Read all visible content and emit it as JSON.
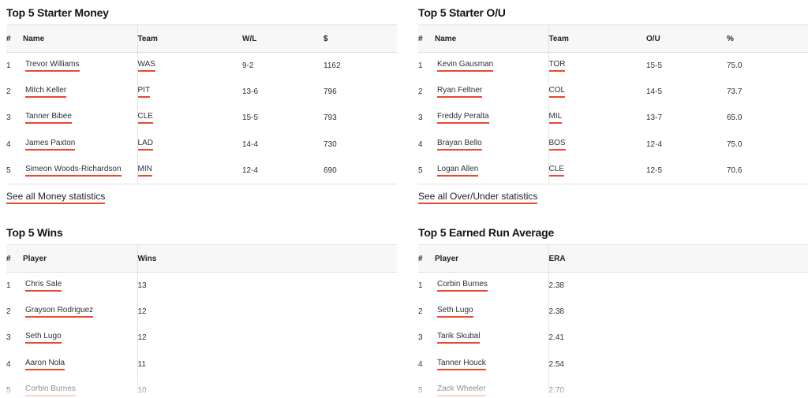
{
  "money": {
    "title": "Top 5 Starter Money",
    "headers": [
      "#",
      "Name",
      "Team",
      "W/L",
      "$"
    ],
    "rows": [
      {
        "rank": "1",
        "name": "Trevor Williams",
        "team": "WAS",
        "wl": "9-2",
        "amount": "1162"
      },
      {
        "rank": "2",
        "name": "Mitch Keller",
        "team": "PIT",
        "wl": "13-6",
        "amount": "796"
      },
      {
        "rank": "3",
        "name": "Tanner Bibee",
        "team": "CLE",
        "wl": "15-5",
        "amount": "793"
      },
      {
        "rank": "4",
        "name": "James Paxton",
        "team": "LAD",
        "wl": "14-4",
        "amount": "730"
      },
      {
        "rank": "5",
        "name": "Simeon Woods-Richardson",
        "team": "MIN",
        "wl": "12-4",
        "amount": "690"
      }
    ],
    "see_all": "See all Money statistics"
  },
  "ou": {
    "title": "Top 5 Starter O/U",
    "headers": [
      "#",
      "Name",
      "Team",
      "O/U",
      "%"
    ],
    "rows": [
      {
        "rank": "1",
        "name": "Kevin Gausman",
        "team": "TOR",
        "ou": "15-5",
        "pct": "75.0"
      },
      {
        "rank": "2",
        "name": "Ryan Feltner",
        "team": "COL",
        "ou": "14-5",
        "pct": "73.7"
      },
      {
        "rank": "3",
        "name": "Freddy Peralta",
        "team": "MIL",
        "ou": "13-7",
        "pct": "65.0"
      },
      {
        "rank": "4",
        "name": "Brayan Bello",
        "team": "BOS",
        "ou": "12-4",
        "pct": "75.0"
      },
      {
        "rank": "5",
        "name": "Logan Allen",
        "team": "CLE",
        "ou": "12-5",
        "pct": "70.6"
      }
    ],
    "see_all": "See all Over/Under statistics"
  },
  "wins": {
    "title": "Top 5 Wins",
    "headers": [
      "#",
      "Player",
      "Wins"
    ],
    "rows": [
      {
        "rank": "1",
        "name": "Chris Sale",
        "value": "13"
      },
      {
        "rank": "2",
        "name": "Grayson Rodriguez",
        "value": "12"
      },
      {
        "rank": "3",
        "name": "Seth Lugo",
        "value": "12"
      },
      {
        "rank": "4",
        "name": "Aaron Nola",
        "value": "11"
      },
      {
        "rank": "5",
        "name": "Corbin Burnes",
        "value": "10"
      }
    ]
  },
  "era": {
    "title": "Top 5 Earned Run Average",
    "headers": [
      "#",
      "Player",
      "ERA"
    ],
    "rows": [
      {
        "rank": "1",
        "name": "Corbin Burnes",
        "value": "2.38"
      },
      {
        "rank": "2",
        "name": "Seth Lugo",
        "value": "2.38"
      },
      {
        "rank": "3",
        "name": "Tarik Skubal",
        "value": "2.41"
      },
      {
        "rank": "4",
        "name": "Tanner Houck",
        "value": "2.54"
      },
      {
        "rank": "5",
        "name": "Zack Wheeler",
        "value": "2.70"
      }
    ]
  },
  "colors": {
    "link_underline": "#e8482f",
    "header_bg": "#f7f7f7",
    "border": "#e2e2e2",
    "text": "#1b2129"
  }
}
